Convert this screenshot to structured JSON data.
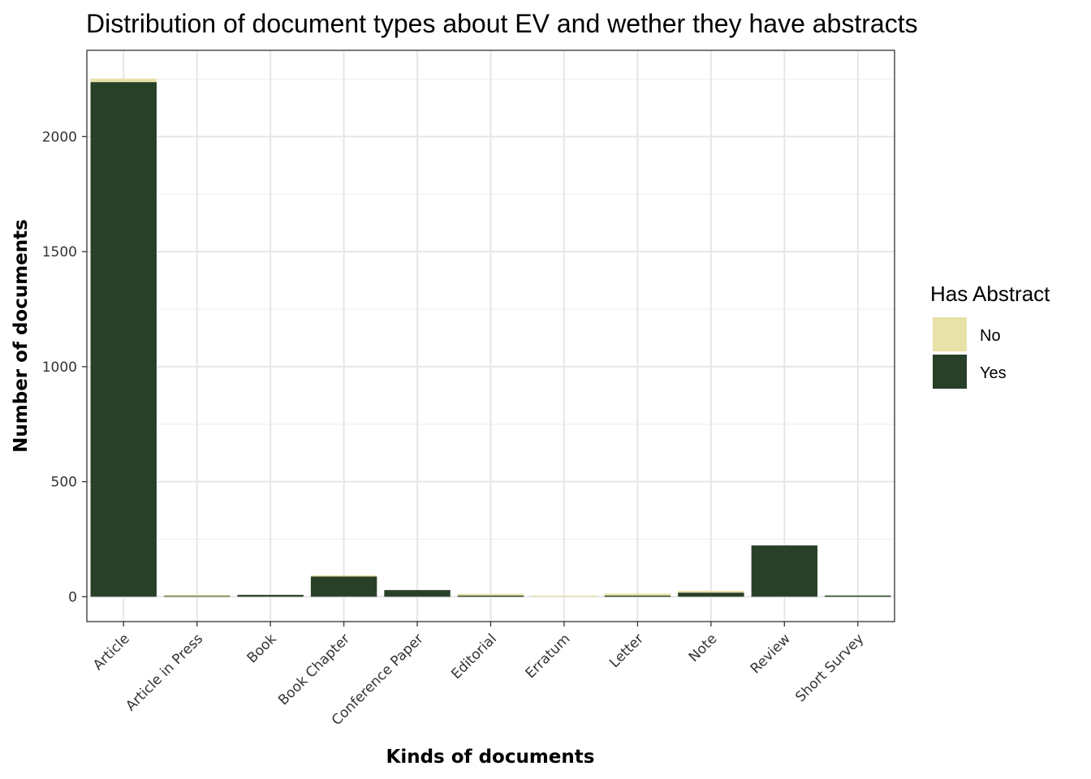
{
  "chart_data": {
    "type": "bar",
    "stacked": true,
    "title": "Distribution of document types about EV and wether they have abstracts",
    "xlabel": "Kinds of documents",
    "ylabel": "Number of documents",
    "categories": [
      "Article",
      "Article in Press",
      "Book",
      "Book Chapter",
      "Conference Paper",
      "Editorial",
      "Erratum",
      "Letter",
      "Note",
      "Review",
      "Short Survey"
    ],
    "series": [
      {
        "name": "No",
        "color": "#e8e2a8",
        "values": [
          15,
          1,
          0,
          3,
          0,
          8,
          3,
          9,
          8,
          0,
          0
        ]
      },
      {
        "name": "Yes",
        "color": "#284027",
        "values": [
          2237,
          3,
          8,
          88,
          29,
          5,
          0,
          5,
          18,
          223,
          4
        ]
      }
    ],
    "yticks": [
      0,
      500,
      1000,
      1500,
      2000
    ],
    "ylim": [
      -108,
      2375
    ],
    "grid": true,
    "legend": {
      "title": "Has Abstract",
      "position": "right"
    }
  }
}
